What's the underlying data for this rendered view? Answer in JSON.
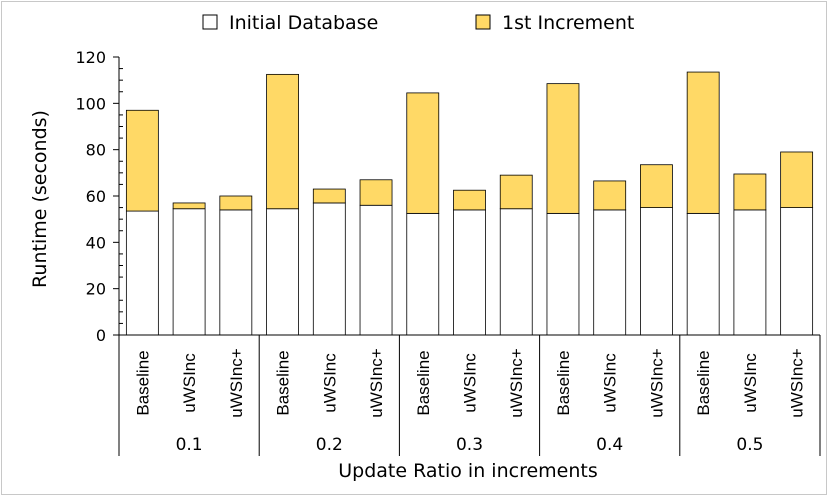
{
  "chart_data": {
    "type": "bar",
    "stacked": true,
    "title": "",
    "xlabel": "Update Ratio in increments",
    "ylabel": "Runtime (seconds)",
    "ylim": [
      0,
      120
    ],
    "yticks": [
      0,
      20,
      40,
      60,
      80,
      100,
      120
    ],
    "groups": [
      "0.1",
      "0.2",
      "0.3",
      "0.4",
      "0.5"
    ],
    "categories": [
      "Baseline",
      "uWSInc",
      "uWSInc+"
    ],
    "legend_position": "top",
    "series": [
      {
        "name": "Initial Database",
        "color": "#ffffff",
        "values": [
          [
            53.5,
            54.5,
            54.0
          ],
          [
            54.5,
            57.0,
            56.0
          ],
          [
            52.5,
            54.0,
            54.5
          ],
          [
            52.5,
            54.0,
            55.0
          ],
          [
            52.5,
            54.0,
            55.0
          ]
        ]
      },
      {
        "name": "1st Increment",
        "color": "#ffd966",
        "values": [
          [
            43.5,
            2.5,
            6.0
          ],
          [
            58.0,
            6.0,
            11.0
          ],
          [
            52.0,
            8.5,
            14.5
          ],
          [
            56.0,
            12.5,
            18.5
          ],
          [
            61.0,
            15.5,
            24.0
          ]
        ]
      }
    ]
  }
}
